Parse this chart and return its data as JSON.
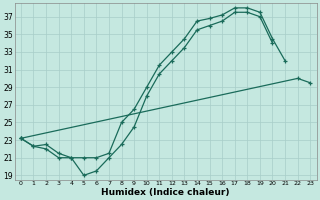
{
  "xlabel": "Humidex (Indice chaleur)",
  "bg_color": "#c5e8e0",
  "line_color": "#1a6b5a",
  "grid_color": "#a8cec8",
  "xlim": [
    -0.5,
    23.5
  ],
  "ylim": [
    18.5,
    38.5
  ],
  "yticks": [
    19,
    21,
    23,
    25,
    27,
    29,
    31,
    33,
    35,
    37
  ],
  "xticks": [
    0,
    1,
    2,
    3,
    4,
    5,
    6,
    7,
    8,
    9,
    10,
    11,
    12,
    13,
    14,
    15,
    16,
    17,
    18,
    19,
    20,
    21,
    22,
    23
  ],
  "line1_x": [
    0,
    1,
    2,
    3,
    4,
    5,
    6,
    7,
    8,
    9,
    10,
    11,
    12,
    13,
    14,
    15,
    16,
    17,
    18,
    19,
    20
  ],
  "line1_y": [
    23.2,
    22.3,
    22.0,
    21.0,
    21.0,
    19.0,
    19.5,
    21.0,
    22.5,
    24.5,
    28.0,
    30.5,
    32.0,
    33.5,
    35.5,
    36.0,
    36.5,
    37.5,
    37.5,
    37.0,
    34.0
  ],
  "line2_x": [
    0,
    1,
    2,
    3,
    4,
    5,
    6,
    7,
    8,
    9,
    10,
    11,
    12,
    13,
    14,
    15,
    16,
    17,
    18,
    19,
    20,
    21
  ],
  "line2_y": [
    23.2,
    22.3,
    22.5,
    21.5,
    21.0,
    21.0,
    21.0,
    21.5,
    25.0,
    26.5,
    29.0,
    31.5,
    33.0,
    34.5,
    36.5,
    36.8,
    37.2,
    38.0,
    38.0,
    37.5,
    34.5,
    32.0
  ],
  "line3_x": [
    0,
    22,
    23
  ],
  "line3_y": [
    23.2,
    30.0,
    29.5
  ]
}
